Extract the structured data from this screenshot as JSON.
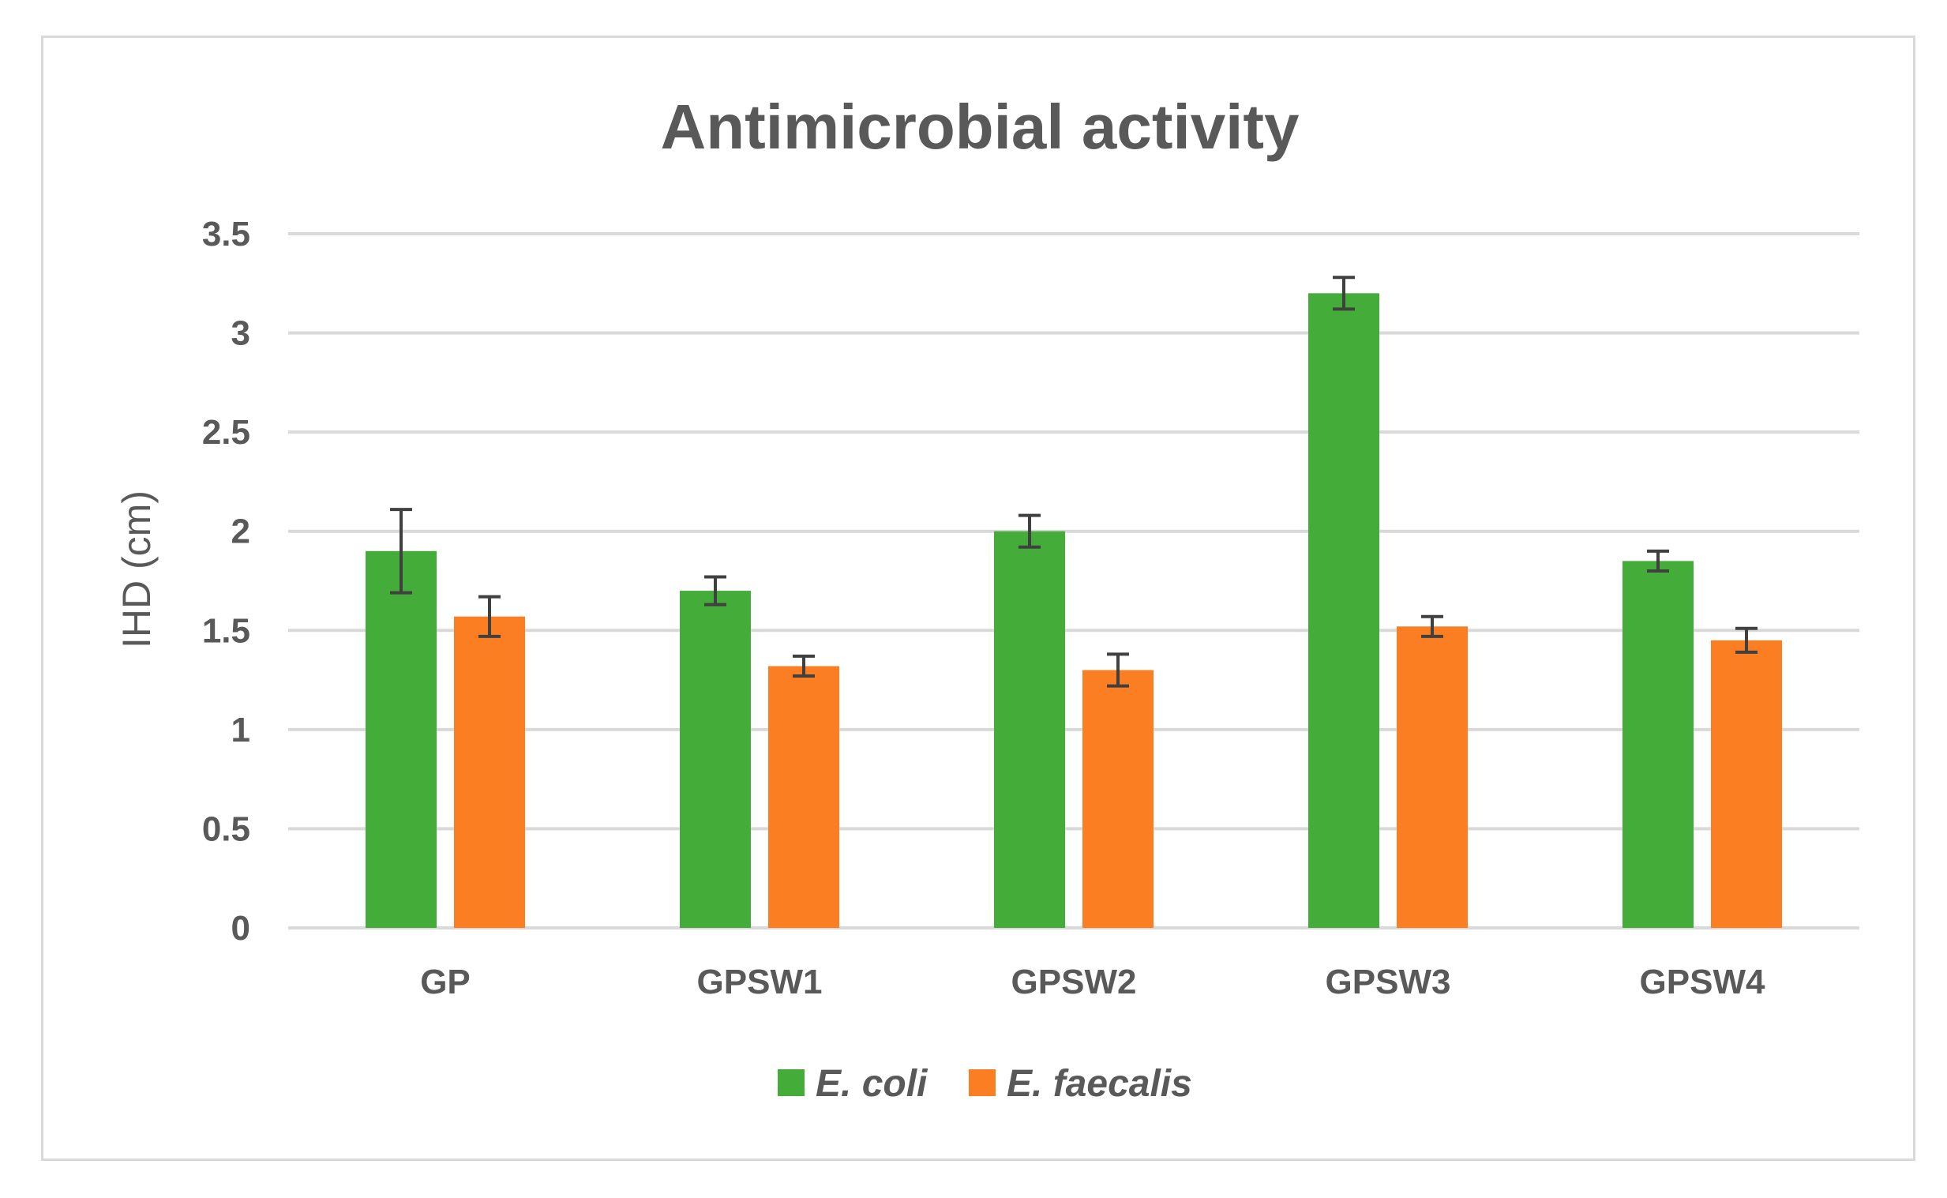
{
  "chart_data": {
    "type": "bar",
    "title": "Antimicrobial activity",
    "xlabel": "",
    "ylabel": "IHD (cm)",
    "ylim": [
      0,
      3.5
    ],
    "yticks": [
      "0",
      "0.5",
      "1",
      "1.5",
      "2",
      "2.5",
      "3",
      "3.5"
    ],
    "categories": [
      "GP",
      "GPSW1",
      "GPSW2",
      "GPSW3",
      "GPSW4"
    ],
    "grid": true,
    "legend": "bottom",
    "series": [
      {
        "name": "E. coli",
        "color": "#44ad3a",
        "values": [
          1.9,
          1.7,
          2.0,
          3.2,
          1.85
        ],
        "errors": [
          0.21,
          0.07,
          0.08,
          0.08,
          0.05
        ]
      },
      {
        "name": "E. faecalis",
        "color": "#fb7e22",
        "values": [
          1.57,
          1.32,
          1.3,
          1.52,
          1.45
        ],
        "errors": [
          0.1,
          0.05,
          0.08,
          0.05,
          0.06
        ]
      }
    ],
    "colors": {
      "grid": "#d9d9d9",
      "text": "#595959",
      "errorbar": "#404040",
      "border": "#d9d9d9"
    }
  }
}
